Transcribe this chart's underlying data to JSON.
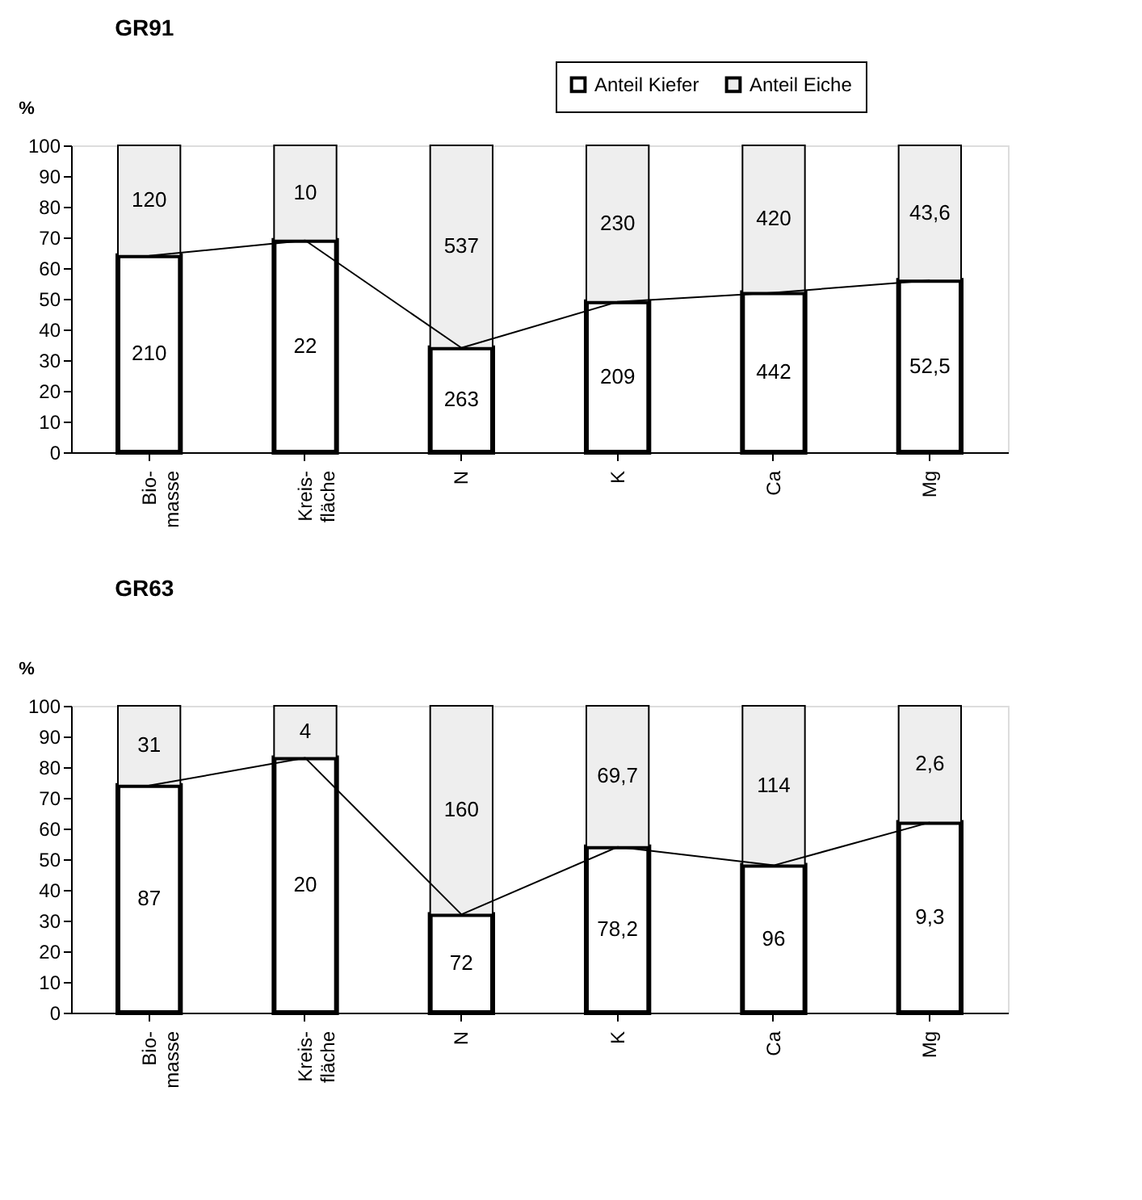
{
  "chart_data": [
    {
      "type": "bar",
      "title": "GR91",
      "ylabel": "%",
      "categories": [
        "Bio-\nmasse",
        "Kreis-\nfläche",
        "N",
        "K",
        "Ca",
        "Mg"
      ],
      "stacked": true,
      "ylim": [
        0,
        100
      ],
      "yticks": [
        0,
        10,
        20,
        30,
        40,
        50,
        60,
        70,
        80,
        90,
        100
      ],
      "grid": false,
      "legend": "top right",
      "series": [
        {
          "name": "Anteil Kiefer",
          "color": "#ffffff",
          "values": [
            64,
            69,
            34,
            49,
            52,
            56
          ]
        },
        {
          "name": "Anteil Eiche",
          "color": "#eeeeee",
          "values": [
            36,
            31,
            66,
            51,
            48,
            44
          ]
        },
        {
          "type": "line",
          "color": "#000000",
          "values": [
            64,
            69,
            34,
            49,
            52,
            56
          ]
        }
      ],
      "annotations": [
        "210",
        "22",
        "263",
        "209",
        "442",
        "52,5",
        "120",
        "10",
        "537",
        "230",
        "420",
        "43,6"
      ]
    },
    {
      "type": "bar",
      "title": "GR63",
      "ylabel": "%",
      "categories": [
        "Bio-\nmasse",
        "Kreis-\nfläche",
        "N",
        "K",
        "Ca",
        "Mg"
      ],
      "stacked": true,
      "ylim": [
        0,
        100
      ],
      "yticks": [
        0,
        10,
        20,
        30,
        40,
        50,
        60,
        70,
        80,
        90,
        100
      ],
      "grid": false,
      "legend": "top right",
      "series": [
        {
          "name": "Anteil Kiefer",
          "color": "#ffffff",
          "values": [
            74,
            83,
            32,
            54,
            48,
            62
          ]
        },
        {
          "name": "Anteil Eiche",
          "color": "#eeeeee",
          "values": [
            26,
            17,
            68,
            46,
            52,
            38
          ]
        },
        {
          "type": "line",
          "color": "#000000",
          "values": [
            74,
            83,
            32,
            54,
            48,
            62
          ]
        }
      ],
      "annotations": [
        "87",
        "20",
        "72",
        "78,2",
        "96",
        "9,3",
        "31",
        "4",
        "160",
        "69,7",
        "114",
        "2,6"
      ]
    }
  ]
}
